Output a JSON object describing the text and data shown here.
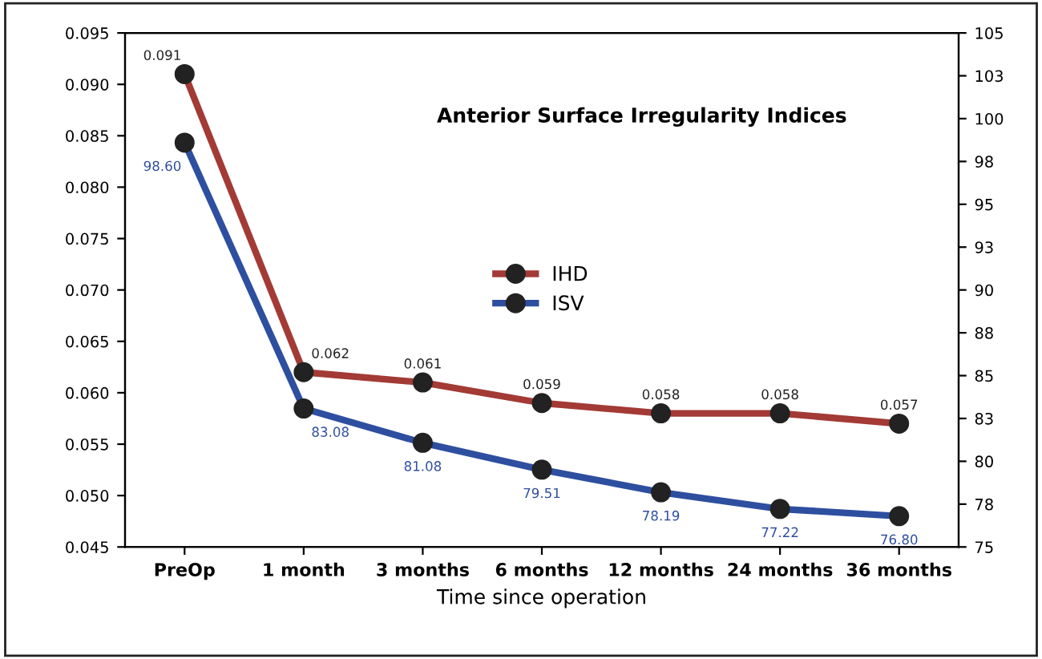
{
  "chart_data": {
    "type": "line",
    "title": "Anterior Surface Irregularity Indices",
    "xlabel": "Time since operation",
    "categories": [
      "PreOp",
      "1 month",
      "3 months",
      "6 months",
      "12 months",
      "24 months",
      "36 months"
    ],
    "series": [
      {
        "name": "IHD",
        "color": "#a33a35",
        "values": [
          0.091,
          0.062,
          0.061,
          0.059,
          0.058,
          0.058,
          0.057
        ],
        "value_labels": [
          "0.091",
          "0.062",
          "0.061",
          "0.059",
          "0.058",
          "0.058",
          "0.057"
        ]
      },
      {
        "name": "ISV",
        "color": "#2e4fa0",
        "axis": "y2",
        "values": [
          98.6,
          83.08,
          81.08,
          79.51,
          78.19,
          77.22,
          76.8
        ],
        "value_labels": [
          "98.60",
          "83.08",
          "81.08",
          "79.51",
          "78.19",
          "77.22",
          "76.80"
        ]
      }
    ],
    "ylim": [
      0.045,
      0.095
    ],
    "yticks": [
      {
        "value": 0.045,
        "label": "0.045"
      },
      {
        "value": 0.05,
        "label": "0.050"
      },
      {
        "value": 0.055,
        "label": "0.055"
      },
      {
        "value": 0.06,
        "label": "0.060"
      },
      {
        "value": 0.065,
        "label": "0.065"
      },
      {
        "value": 0.07,
        "label": "0.070"
      },
      {
        "value": 0.075,
        "label": "0.075"
      },
      {
        "value": 0.08,
        "label": "0.080"
      },
      {
        "value": 0.085,
        "label": "0.085"
      },
      {
        "value": 0.09,
        "label": "0.090"
      },
      {
        "value": 0.095,
        "label": "0.095"
      }
    ],
    "y2lim": [
      75,
      105
    ],
    "y2ticks": [
      75,
      {
        "value": 77.5,
        "label": "78"
      },
      80,
      {
        "value": 82.5,
        "label": "83"
      },
      85,
      {
        "value": 87.5,
        "label": "88"
      },
      90,
      {
        "value": 92.5,
        "label": "93"
      },
      95,
      {
        "value": 97.5,
        "label": "98"
      },
      100,
      {
        "value": 102.5,
        "label": "103"
      },
      105
    ],
    "legend": "center",
    "marker": "circle",
    "line_style": "solid",
    "grid": false
  }
}
